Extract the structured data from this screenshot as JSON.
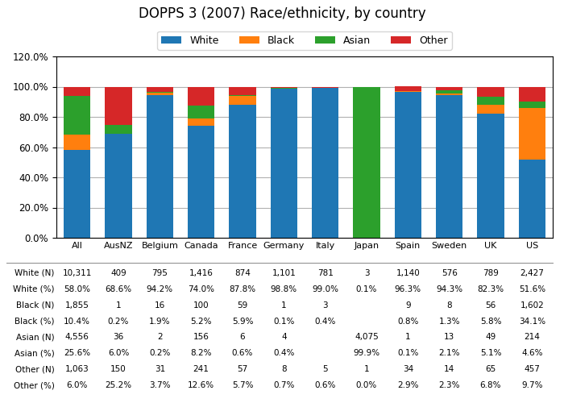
{
  "chart_data": {
    "type": "bar",
    "title": "DOPPS 3 (2007) Race/ethnicity, by country",
    "categories": [
      "All",
      "AusNZ",
      "Belgium",
      "Canada",
      "France",
      "Germany",
      "Italy",
      "Japan",
      "Spain",
      "Sweden",
      "UK",
      "US"
    ],
    "stacked": true,
    "series": [
      {
        "name": "White",
        "values": [
          58.0,
          68.6,
          94.2,
          74.0,
          87.8,
          98.8,
          99.0,
          0.1,
          96.3,
          94.3,
          82.3,
          51.6
        ]
      },
      {
        "name": "Black",
        "values": [
          10.4,
          0.2,
          1.9,
          5.2,
          5.9,
          0.1,
          0.4,
          0.0,
          0.8,
          1.3,
          5.8,
          34.1
        ]
      },
      {
        "name": "Asian",
        "values": [
          25.6,
          6.0,
          0.2,
          8.2,
          0.6,
          0.4,
          0.0,
          99.9,
          0.1,
          2.1,
          5.1,
          4.6
        ]
      },
      {
        "name": "Other",
        "values": [
          6.0,
          25.2,
          3.7,
          12.6,
          5.7,
          0.7,
          0.6,
          0.0,
          2.9,
          2.3,
          6.8,
          9.7
        ]
      }
    ],
    "ylim": [
      0,
      120
    ],
    "yticks": [
      {
        "value": 0,
        "label": "0.0%"
      },
      {
        "value": 20,
        "label": "20.0%"
      },
      {
        "value": 40,
        "label": "40.0%"
      },
      {
        "value": 60,
        "label": "60.0%"
      },
      {
        "value": 80,
        "label": "80.0%"
      },
      {
        "value": 100,
        "label": "100.0%"
      },
      {
        "value": 120,
        "label": "120.0%"
      }
    ],
    "grid": true,
    "legend": "upper center",
    "table": [
      [
        "White (N)",
        "10,311",
        "409",
        "795",
        "1,416",
        "874",
        "1,101",
        "781",
        "3",
        "1,140",
        "576",
        "789",
        "2,427"
      ],
      [
        "White (%)",
        "58.0%",
        "68.6%",
        "94.2%",
        "74.0%",
        "87.8%",
        "98.8%",
        "99.0%",
        "0.1%",
        "96.3%",
        "94.3%",
        "82.3%",
        "51.6%"
      ],
      [
        "Black (N)",
        "1,855",
        "1",
        "16",
        "100",
        "59",
        "1",
        "3",
        null,
        "9",
        "8",
        "56",
        "1,602"
      ],
      [
        "Black (%)",
        "10.4%",
        "0.2%",
        "1.9%",
        "5.2%",
        "5.9%",
        "0.1%",
        "0.4%",
        null,
        "0.8%",
        "1.3%",
        "5.8%",
        "34.1%"
      ],
      [
        "Asian (N)",
        "4,556",
        "36",
        "2",
        "156",
        "6",
        "4",
        null,
        "4,075",
        "1",
        "13",
        "49",
        "214"
      ],
      [
        "Asian (%)",
        "25.6%",
        "6.0%",
        "0.2%",
        "8.2%",
        "0.6%",
        "0.4%",
        null,
        "99.9%",
        "0.1%",
        "2.1%",
        "5.1%",
        "4.6%"
      ],
      [
        "Other (N)",
        "1,063",
        "150",
        "31",
        "241",
        "57",
        "8",
        "5",
        "1",
        "34",
        "14",
        "65",
        "457"
      ],
      [
        "Other (%)",
        "6.0%",
        "25.2%",
        "3.7%",
        "12.6%",
        "5.7%",
        "0.7%",
        "0.6%",
        "0.0%",
        "2.9%",
        "2.3%",
        "6.8%",
        "9.7%"
      ]
    ]
  }
}
